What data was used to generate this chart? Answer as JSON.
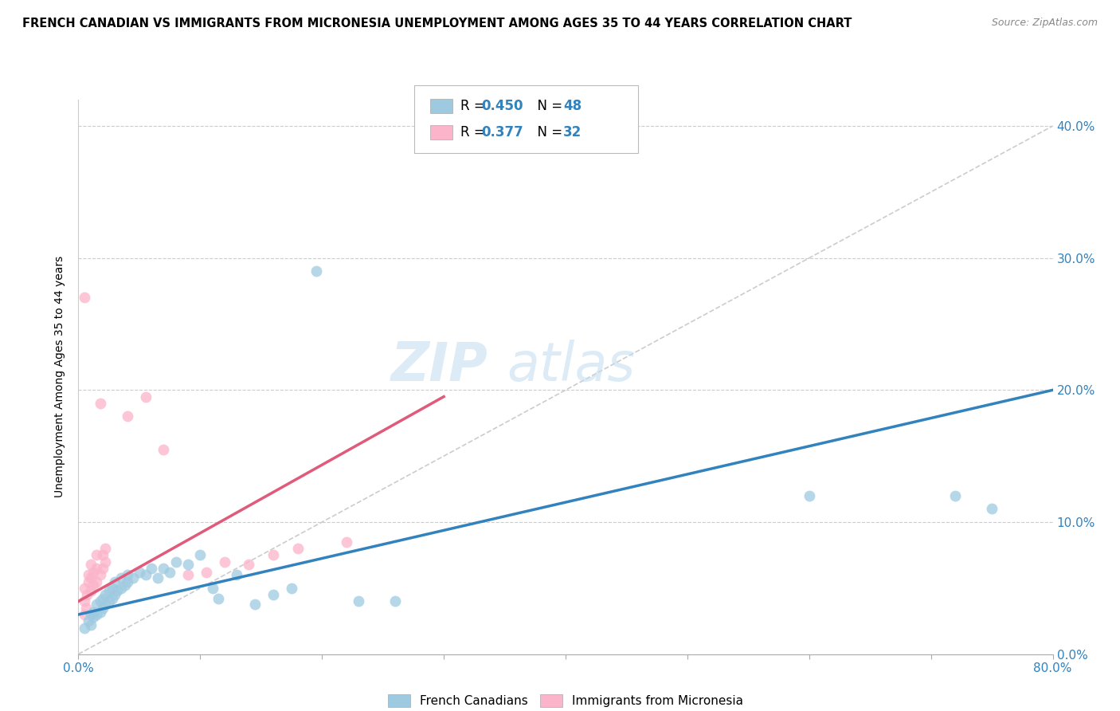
{
  "title": "FRENCH CANADIAN VS IMMIGRANTS FROM MICRONESIA UNEMPLOYMENT AMONG AGES 35 TO 44 YEARS CORRELATION CHART",
  "source": "Source: ZipAtlas.com",
  "ylabel": "Unemployment Among Ages 35 to 44 years",
  "watermark_zip": "ZIP",
  "watermark_atlas": "atlas",
  "legend1_label": "French Canadians",
  "legend1_R": "R = 0.450",
  "legend1_N": "N = 48",
  "legend2_label": "Immigrants from Micronesia",
  "legend2_R": "R = 0.377",
  "legend2_N": "N = 32",
  "blue_color": "#9ecae1",
  "pink_color": "#fbb4c9",
  "blue_line_color": "#3182bd",
  "pink_line_color": "#e05a7a",
  "blue_scatter": [
    [
      0.005,
      0.02
    ],
    [
      0.008,
      0.025
    ],
    [
      0.01,
      0.022
    ],
    [
      0.01,
      0.03
    ],
    [
      0.012,
      0.028
    ],
    [
      0.012,
      0.032
    ],
    [
      0.015,
      0.03
    ],
    [
      0.015,
      0.038
    ],
    [
      0.018,
      0.032
    ],
    [
      0.018,
      0.04
    ],
    [
      0.02,
      0.035
    ],
    [
      0.02,
      0.042
    ],
    [
      0.022,
      0.038
    ],
    [
      0.022,
      0.045
    ],
    [
      0.025,
      0.04
    ],
    [
      0.025,
      0.048
    ],
    [
      0.028,
      0.042
    ],
    [
      0.028,
      0.05
    ],
    [
      0.03,
      0.045
    ],
    [
      0.03,
      0.055
    ],
    [
      0.032,
      0.048
    ],
    [
      0.035,
      0.05
    ],
    [
      0.035,
      0.058
    ],
    [
      0.038,
      0.052
    ],
    [
      0.04,
      0.055
    ],
    [
      0.04,
      0.06
    ],
    [
      0.045,
      0.058
    ],
    [
      0.05,
      0.062
    ],
    [
      0.055,
      0.06
    ],
    [
      0.06,
      0.065
    ],
    [
      0.065,
      0.058
    ],
    [
      0.07,
      0.065
    ],
    [
      0.075,
      0.062
    ],
    [
      0.08,
      0.07
    ],
    [
      0.09,
      0.068
    ],
    [
      0.1,
      0.075
    ],
    [
      0.11,
      0.05
    ],
    [
      0.115,
      0.042
    ],
    [
      0.13,
      0.06
    ],
    [
      0.145,
      0.038
    ],
    [
      0.16,
      0.045
    ],
    [
      0.175,
      0.05
    ],
    [
      0.195,
      0.29
    ],
    [
      0.23,
      0.04
    ],
    [
      0.26,
      0.04
    ],
    [
      0.6,
      0.12
    ],
    [
      0.72,
      0.12
    ],
    [
      0.75,
      0.11
    ]
  ],
  "pink_scatter": [
    [
      0.005,
      0.03
    ],
    [
      0.005,
      0.04
    ],
    [
      0.005,
      0.05
    ],
    [
      0.006,
      0.035
    ],
    [
      0.007,
      0.045
    ],
    [
      0.008,
      0.055
    ],
    [
      0.008,
      0.06
    ],
    [
      0.01,
      0.048
    ],
    [
      0.01,
      0.058
    ],
    [
      0.01,
      0.068
    ],
    [
      0.012,
      0.052
    ],
    [
      0.012,
      0.062
    ],
    [
      0.015,
      0.055
    ],
    [
      0.015,
      0.065
    ],
    [
      0.015,
      0.075
    ],
    [
      0.018,
      0.06
    ],
    [
      0.02,
      0.065
    ],
    [
      0.02,
      0.075
    ],
    [
      0.022,
      0.07
    ],
    [
      0.022,
      0.08
    ],
    [
      0.005,
      0.27
    ],
    [
      0.018,
      0.19
    ],
    [
      0.04,
      0.18
    ],
    [
      0.055,
      0.195
    ],
    [
      0.07,
      0.155
    ],
    [
      0.09,
      0.06
    ],
    [
      0.105,
      0.062
    ],
    [
      0.12,
      0.07
    ],
    [
      0.14,
      0.068
    ],
    [
      0.16,
      0.075
    ],
    [
      0.18,
      0.08
    ],
    [
      0.22,
      0.085
    ]
  ],
  "xlim": [
    0.0,
    0.8
  ],
  "ylim": [
    0.0,
    0.42
  ],
  "xticks": [
    0.0,
    0.1,
    0.2,
    0.3,
    0.4,
    0.5,
    0.6,
    0.7,
    0.8
  ],
  "yticks": [
    0.0,
    0.1,
    0.2,
    0.3,
    0.4
  ],
  "ytick_labels_right": [
    "0.0%",
    "10.0%",
    "20.0%",
    "30.0%",
    "40.0%"
  ],
  "background_color": "#ffffff",
  "blue_regression": [
    0.0,
    0.8,
    0.03,
    0.2
  ],
  "pink_regression": [
    0.0,
    0.3,
    0.04,
    0.195
  ],
  "diag_line": [
    0.0,
    0.8,
    0.0,
    0.4
  ]
}
